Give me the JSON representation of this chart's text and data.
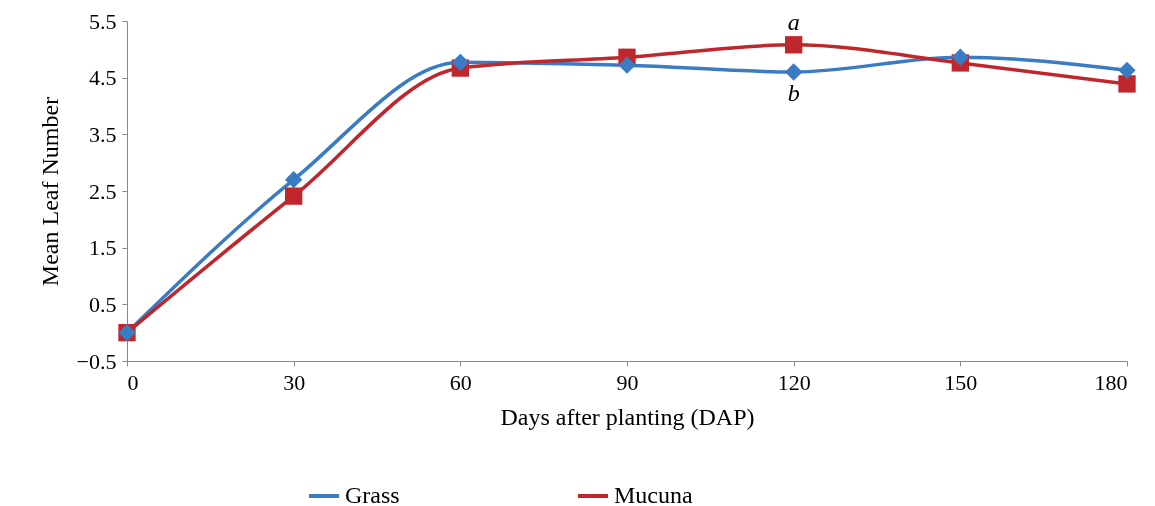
{
  "chart_data": {
    "type": "line",
    "xlabel": "Days after planting (DAP)",
    "ylabel": "Mean Leaf Number",
    "x": [
      0,
      30,
      60,
      90,
      120,
      150,
      180
    ],
    "series": [
      {
        "name": "Grass",
        "color": "#3a7cc4",
        "marker": "diamond",
        "values": [
          0.0,
          2.7,
          4.77,
          4.72,
          4.6,
          4.86,
          4.63
        ]
      },
      {
        "name": "Mucuna",
        "color": "#c0272d",
        "marker": "square",
        "values": [
          0.0,
          2.41,
          4.67,
          4.86,
          5.08,
          4.76,
          4.39
        ]
      }
    ],
    "xlim": [
      0,
      180
    ],
    "xticks": [
      0,
      30,
      60,
      90,
      120,
      150,
      180
    ],
    "ylim": [
      -0.5,
      5.5
    ],
    "yticks": [
      -0.5,
      0.5,
      1.5,
      2.5,
      3.5,
      4.5,
      5.5
    ],
    "annotations": [
      {
        "text": "a",
        "x": 120,
        "y": 5.08
      },
      {
        "text": "b",
        "x": 120,
        "y": 4.6
      }
    ],
    "grid": false,
    "legend": "bottom"
  }
}
